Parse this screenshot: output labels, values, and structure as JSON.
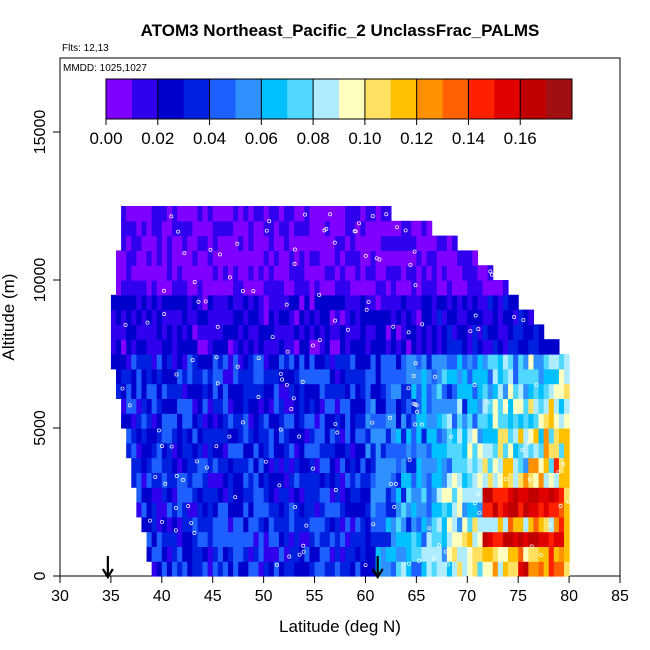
{
  "chart_data": {
    "type": "heatmap",
    "title": "ATOM3 Northeast_Pacific_2 UnclassFrac_PALMS",
    "flights_label": "Flts: 12,13",
    "date_label": "MMDD: 1025,1027",
    "xlabel": "Latitude (deg N)",
    "ylabel": "Altitude (m)",
    "xlim": [
      30,
      85
    ],
    "ylim": [
      0,
      17500
    ],
    "x_ticks": [
      "30",
      "35",
      "40",
      "45",
      "50",
      "55",
      "60",
      "65",
      "70",
      "75",
      "80",
      "85"
    ],
    "y_ticks": [
      "0",
      "5000",
      "10000",
      "15000"
    ],
    "colorbar": {
      "range": [
        0,
        0.18
      ],
      "tick_labels": [
        "0.00",
        "0.02",
        "0.04",
        "0.06",
        "0.08",
        "0.10",
        "0.12",
        "0.14",
        "0.16"
      ],
      "colors": [
        "#8000ff",
        "#3000ee",
        "#0000cc",
        "#0020e0",
        "#1e60ff",
        "#2f90ff",
        "#00c0ff",
        "#50d8ff",
        "#b0ecff",
        "#ffffc0",
        "#ffe060",
        "#ffc000",
        "#ff9000",
        "#ff6000",
        "#ff2000",
        "#e00000",
        "#c00000",
        "#a01010"
      ]
    },
    "flight_markers_lat": [
      34.7,
      61.2
    ],
    "data_extent": {
      "lat_range": [
        35,
        80
      ],
      "alt_top_at_lat": [
        [
          36,
          12500
        ],
        [
          47,
          12500
        ],
        [
          57,
          12400
        ],
        [
          64,
          12200
        ],
        [
          68,
          11500
        ],
        [
          72,
          10500
        ],
        [
          75,
          9300
        ],
        [
          78,
          8100
        ],
        [
          80,
          7500
        ]
      ],
      "alt_left_edge": [
        [
          0,
          39.5
        ],
        [
          1000,
          38.5
        ],
        [
          2500,
          37.5
        ],
        [
          4500,
          36.5
        ],
        [
          6500,
          35.5
        ],
        [
          8000,
          35.0
        ],
        [
          9500,
          35.3
        ],
        [
          12500,
          36.2
        ]
      ]
    },
    "field_summary": {
      "upper_troposphere": "mostly 0.00-0.02",
      "mid_latitudes_below_5000m": "0.02-0.08",
      "high_latitudes_below_6000m": "0.08-0.14",
      "maximum_region": "lat 71-79, alt 2000-2500 m and 500-1000 m, ~0.15-0.17"
    }
  }
}
